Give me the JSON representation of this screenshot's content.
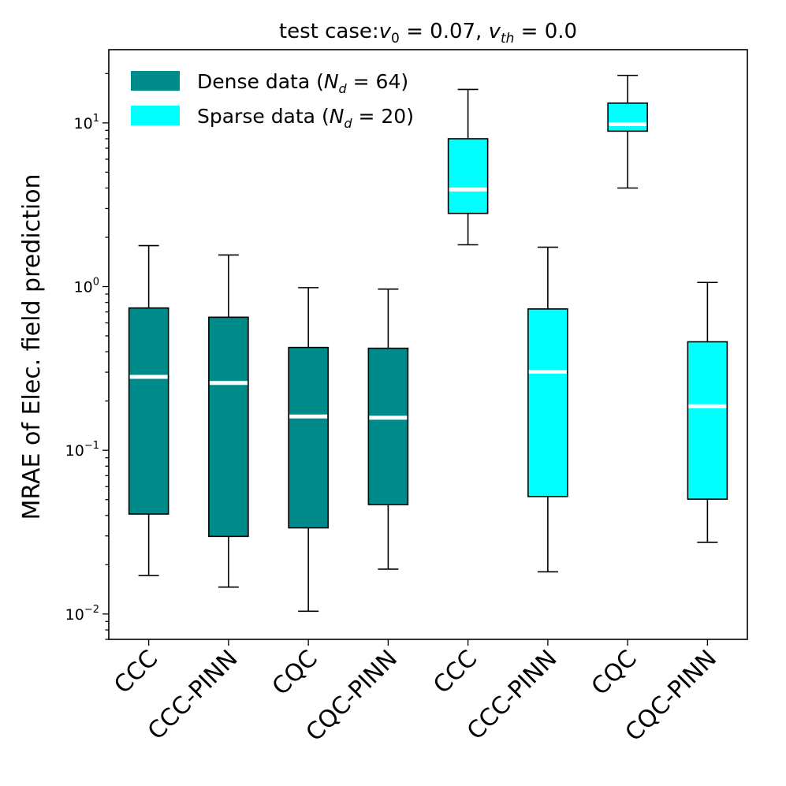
{
  "chart_data": {
    "type": "box",
    "title": {
      "prefix": "test case:",
      "v0_symbol": "v",
      "v0_sub": "0",
      "v0_value": " = 0.07, ",
      "vth_symbol": "v",
      "vth_sub": "th",
      "vth_value": " = 0.0"
    },
    "ylabel": "MRAE of Elec. field prediction",
    "yscale": "log",
    "ylim": [
      0.007,
      28
    ],
    "yticks": [
      {
        "value": 0.01,
        "base": "10",
        "exp": "−2"
      },
      {
        "value": 0.1,
        "base": "10",
        "exp": "−1"
      },
      {
        "value": 1,
        "base": "10",
        "exp": "0"
      },
      {
        "value": 10,
        "base": "10",
        "exp": "1"
      }
    ],
    "categories": [
      "CCC",
      "CCC-PINN",
      "CQC",
      "CQC-PINN",
      "CCC",
      "CCC-PINN",
      "CQC",
      "CQC-PINN"
    ],
    "legend": [
      {
        "label_prefix": "Dense data (",
        "sym": "N",
        "sub": "d",
        "label_suffix": " = 64)",
        "color": "#008b8b"
      },
      {
        "label_prefix": "Sparse data (",
        "sym": "N",
        "sub": "d",
        "label_suffix": " = 20)",
        "color": "#00ffff"
      }
    ],
    "series": [
      {
        "name": "Dense data",
        "color": "#008b8b",
        "boxes": [
          {
            "pos": 1,
            "whislo": 0.0172,
            "q1": 0.0408,
            "med": 0.281,
            "q3": 0.74,
            "whishi": 1.78
          },
          {
            "pos": 2,
            "whislo": 0.0146,
            "q1": 0.0298,
            "med": 0.258,
            "q3": 0.65,
            "whishi": 1.56
          },
          {
            "pos": 3,
            "whislo": 0.0104,
            "q1": 0.0336,
            "med": 0.161,
            "q3": 0.425,
            "whishi": 0.985
          },
          {
            "pos": 4,
            "whislo": 0.0188,
            "q1": 0.0466,
            "med": 0.158,
            "q3": 0.42,
            "whishi": 0.965
          }
        ]
      },
      {
        "name": "Sparse data",
        "color": "#00ffff",
        "boxes": [
          {
            "pos": 5,
            "whislo": 1.8,
            "q1": 2.8,
            "med": 3.92,
            "q3": 8.0,
            "whishi": 16.0
          },
          {
            "pos": 6,
            "whislo": 0.0181,
            "q1": 0.0522,
            "med": 0.302,
            "q3": 0.73,
            "whishi": 1.74
          },
          {
            "pos": 7,
            "whislo": 4.0,
            "q1": 8.9,
            "med": 9.82,
            "q3": 13.2,
            "whishi": 19.5
          },
          {
            "pos": 8,
            "whislo": 0.0274,
            "q1": 0.0503,
            "med": 0.186,
            "q3": 0.46,
            "whishi": 1.06
          }
        ]
      }
    ],
    "median_color": "#ffffff"
  }
}
